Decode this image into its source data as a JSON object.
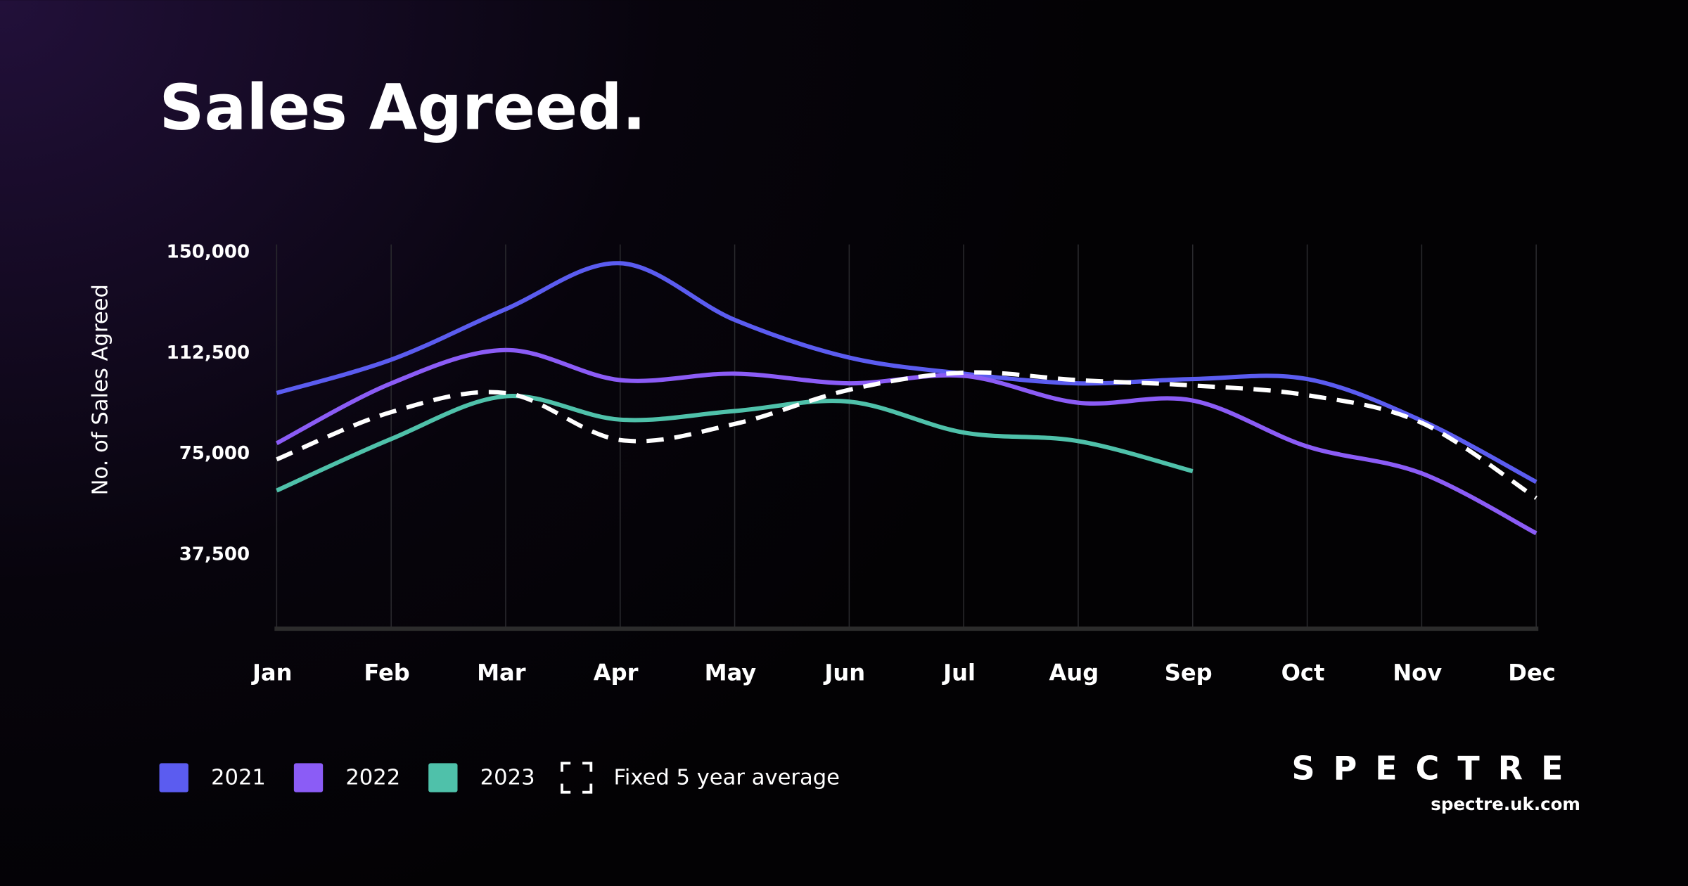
{
  "chart_data": {
    "type": "line",
    "title": "Sales Agreed.",
    "y_label": "No. of Sales Agreed",
    "categories": [
      "Jan",
      "Feb",
      "Mar",
      "Apr",
      "May",
      "Jun",
      "Jul",
      "Aug",
      "Sep",
      "Oct",
      "Nov",
      "Dec"
    ],
    "series": [
      {
        "name": "2021",
        "color": "#5b5cf0",
        "values": [
          97700,
          110100,
          128900,
          146000,
          124900,
          110900,
          104900,
          101300,
          102900,
          102900,
          87400,
          64600
        ]
      },
      {
        "name": "2022",
        "color": "#8b5cf6",
        "values": [
          79000,
          101300,
          113700,
          102500,
          104900,
          101300,
          104100,
          94100,
          94900,
          77800,
          67800,
          45500
        ]
      },
      {
        "name": "2023",
        "color": "#4fc1aa",
        "values": [
          61400,
          80600,
          96500,
          87800,
          91000,
          94500,
          83000,
          79800,
          68600,
          null,
          null,
          null
        ]
      },
      {
        "name": "Fixed 5 year average",
        "color": "#ffffff",
        "dashed": true,
        "values": [
          73000,
          90600,
          97700,
          80200,
          86200,
          98900,
          105300,
          102500,
          100500,
          96900,
          86600,
          58600
        ]
      }
    ],
    "ylim": [
      10000,
      153000
    ],
    "yticks": [
      {
        "value": 37500,
        "label": "37,500"
      },
      {
        "value": 75000,
        "label": "75,000"
      },
      {
        "value": 112500,
        "label": "112,500"
      },
      {
        "value": 150000,
        "label": "150,000"
      }
    ],
    "grid": "x",
    "legend": "bottom-left",
    "brand": "SPECTRE",
    "website": "spectre.uk.com"
  }
}
